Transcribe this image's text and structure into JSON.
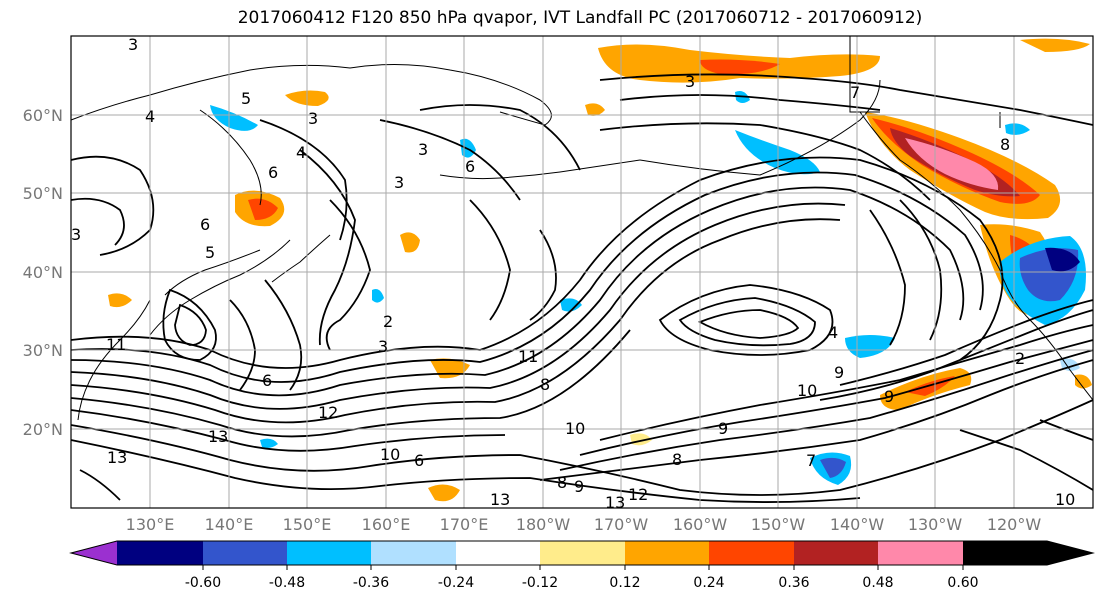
{
  "title": "2017060412 F120 850 hPa qvapor, IVT Landfall PC (2017060712 - 2017060912)",
  "lat_ticks": [
    "60°N",
    "50°N",
    "40°N",
    "30°N",
    "20°N"
  ],
  "lon_ticks": [
    "130°E",
    "140°E",
    "150°E",
    "160°E",
    "170°E",
    "180°W",
    "170°W",
    "160°W",
    "150°W",
    "140°W",
    "130°W",
    "120°W"
  ],
  "colorbar": {
    "colors": [
      "#9b30d0",
      "#000080",
      "#3355cc",
      "#00bfff",
      "#b0e0ff",
      "#ffffff",
      "#ffec8b",
      "#ffa500",
      "#ff4500",
      "#b22222",
      "#ff88aa"
    ],
    "tick_labels": [
      "-0.60",
      "-0.48",
      "-0.36",
      "-0.24",
      "-0.12",
      "0.12",
      "0.24",
      "0.36",
      "0.48",
      "0.60"
    ]
  },
  "contour_labels": [
    "3",
    "4",
    "3",
    "4",
    "5",
    "6",
    "6",
    "3",
    "3",
    "3",
    "5",
    "7",
    "6",
    "3",
    "8",
    "2",
    "3",
    "11",
    "6",
    "12",
    "13",
    "13",
    "10",
    "6",
    "11",
    "8",
    "10",
    "8",
    "9",
    "4",
    "10",
    "9",
    "2",
    "9",
    "7",
    "13",
    "13",
    "12",
    "8",
    "9",
    "10"
  ]
}
